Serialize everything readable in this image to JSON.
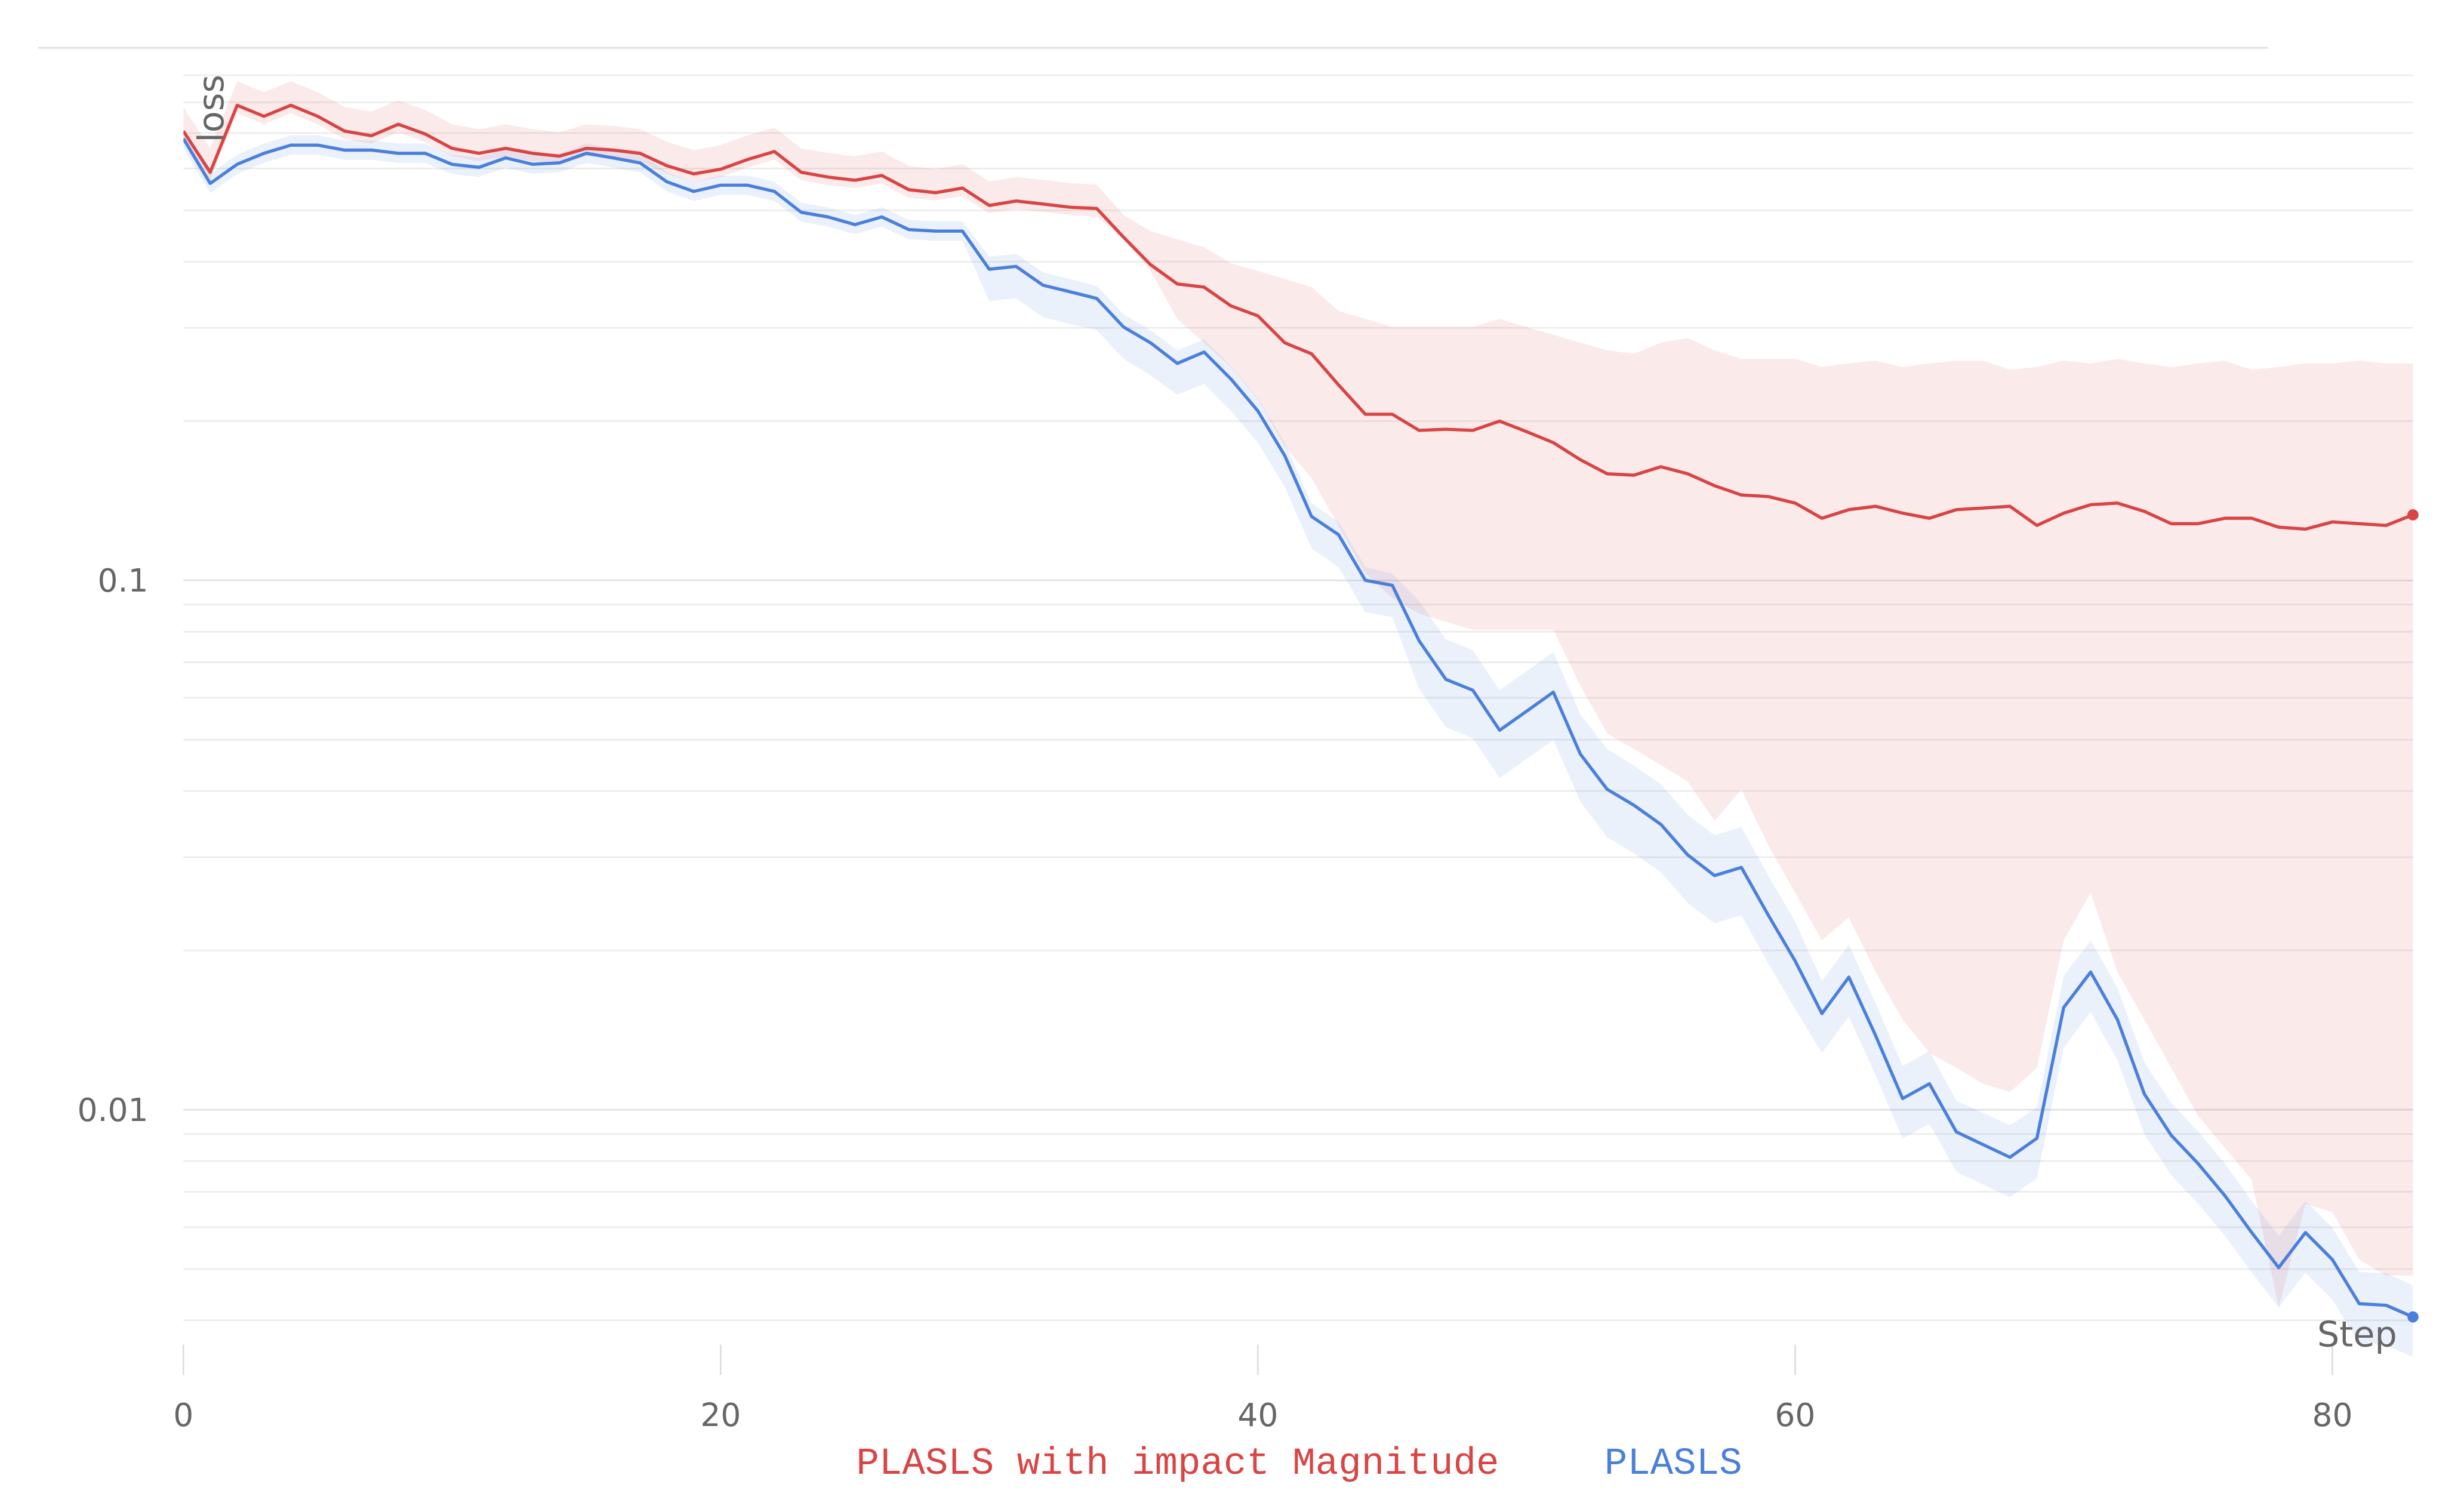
{
  "chart_data": {
    "type": "line",
    "y_label": "loss",
    "x_label": "Step",
    "log_y": true,
    "grid": true,
    "xlim": [
      0,
      83
    ],
    "xticks": [
      0,
      20,
      40,
      60,
      80
    ],
    "ylim": [
      0.0035,
      1
    ],
    "yticks": [
      0.1,
      0.01
    ],
    "minor_yticks": [
      0.004,
      0.005,
      0.006,
      0.007,
      0.008,
      0.009,
      0.02,
      0.03,
      0.04,
      0.05,
      0.06,
      0.07,
      0.08,
      0.09,
      0.2,
      0.3,
      0.4,
      0.5,
      0.6,
      0.7,
      0.8,
      0.9
    ],
    "x": [
      0,
      1,
      2,
      3,
      4,
      5,
      6,
      7,
      8,
      9,
      10,
      11,
      12,
      13,
      14,
      15,
      16,
      17,
      18,
      19,
      20,
      21,
      22,
      23,
      24,
      25,
      26,
      27,
      28,
      29,
      30,
      31,
      32,
      33,
      34,
      35,
      36,
      37,
      38,
      39,
      40,
      41,
      42,
      43,
      44,
      45,
      46,
      47,
      48,
      49,
      50,
      51,
      52,
      53,
      54,
      55,
      56,
      57,
      58,
      59,
      60,
      61,
      62,
      63,
      64,
      65,
      66,
      67,
      68,
      69,
      70,
      71,
      72,
      73,
      74,
      75,
      76,
      77,
      78,
      79,
      80,
      81,
      82,
      83
    ],
    "series": [
      {
        "name": "PLASLS with impact Magnitude",
        "color": "#d94444",
        "values": [
          0.706,
          0.59,
          0.79,
          0.753,
          0.79,
          0.753,
          0.706,
          0.692,
          0.727,
          0.697,
          0.655,
          0.641,
          0.655,
          0.641,
          0.633,
          0.655,
          0.65,
          0.641,
          0.607,
          0.586,
          0.598,
          0.624,
          0.646,
          0.59,
          0.578,
          0.57,
          0.582,
          0.547,
          0.54,
          0.551,
          0.511,
          0.521,
          0.514,
          0.507,
          0.504,
          0.445,
          0.395,
          0.363,
          0.358,
          0.33,
          0.316,
          0.281,
          0.268,
          0.234,
          0.206,
          0.206,
          0.192,
          0.193,
          0.192,
          0.2,
          0.191,
          0.182,
          0.169,
          0.159,
          0.158,
          0.164,
          0.159,
          0.151,
          0.145,
          0.144,
          0.14,
          0.131,
          0.136,
          0.138,
          0.134,
          0.131,
          0.136,
          0.137,
          0.138,
          0.127,
          0.134,
          0.139,
          0.14,
          0.135,
          0.128,
          0.128,
          0.131,
          0.131,
          0.126,
          0.125,
          0.129,
          0.128,
          0.127,
          0.133
        ],
        "upper": [
          0.784,
          0.655,
          0.877,
          0.836,
          0.877,
          0.836,
          0.784,
          0.768,
          0.807,
          0.774,
          0.727,
          0.712,
          0.727,
          0.712,
          0.703,
          0.727,
          0.722,
          0.712,
          0.674,
          0.65,
          0.664,
          0.693,
          0.717,
          0.655,
          0.642,
          0.633,
          0.646,
          0.607,
          0.599,
          0.612,
          0.567,
          0.578,
          0.571,
          0.563,
          0.559,
          0.49,
          0.457,
          0.441,
          0.426,
          0.397,
          0.384,
          0.371,
          0.358,
          0.323,
          0.312,
          0.301,
          0.301,
          0.301,
          0.301,
          0.312,
          0.301,
          0.291,
          0.281,
          0.272,
          0.268,
          0.281,
          0.287,
          0.272,
          0.262,
          0.262,
          0.262,
          0.253,
          0.257,
          0.26,
          0.253,
          0.257,
          0.26,
          0.26,
          0.25,
          0.253,
          0.26,
          0.257,
          0.262,
          0.257,
          0.253,
          0.257,
          0.26,
          0.25,
          0.253,
          0.257,
          0.257,
          0.26,
          0.257,
          0.257
        ],
        "lower": [
          0.682,
          0.57,
          0.763,
          0.727,
          0.763,
          0.727,
          0.682,
          0.668,
          0.702,
          0.673,
          0.633,
          0.619,
          0.633,
          0.619,
          0.611,
          0.633,
          0.628,
          0.619,
          0.586,
          0.566,
          0.578,
          0.603,
          0.624,
          0.57,
          0.558,
          0.551,
          0.562,
          0.528,
          0.522,
          0.532,
          0.494,
          0.503,
          0.497,
          0.49,
          0.487,
          0.441,
          0.384,
          0.312,
          0.281,
          0.253,
          0.22,
          0.179,
          0.156,
          0.127,
          0.103,
          0.0927,
          0.0865,
          0.0835,
          0.0807,
          0.0807,
          0.0807,
          0.0807,
          0.0633,
          0.0514,
          0.048,
          0.0448,
          0.0417,
          0.0351,
          0.0403,
          0.0316,
          0.0257,
          0.0209,
          0.0231,
          0.0182,
          0.0148,
          0.0128,
          0.012,
          0.0112,
          0.0108,
          0.012,
          0.0209,
          0.0257,
          0.0182,
          0.0148,
          0.012,
          0.00973,
          0.00847,
          0.00737,
          0.00423,
          0.00664,
          0.00641,
          0.00521,
          0.00486,
          0.00486
        ]
      },
      {
        "name": "PLASLS",
        "color": "#4a7fdc",
        "values": [
          0.683,
          0.562,
          0.611,
          0.641,
          0.664,
          0.664,
          0.65,
          0.65,
          0.641,
          0.641,
          0.611,
          0.603,
          0.628,
          0.611,
          0.615,
          0.641,
          0.628,
          0.615,
          0.566,
          0.543,
          0.558,
          0.558,
          0.543,
          0.496,
          0.486,
          0.47,
          0.486,
          0.46,
          0.457,
          0.457,
          0.387,
          0.392,
          0.361,
          0.351,
          0.341,
          0.301,
          0.281,
          0.257,
          0.27,
          0.24,
          0.209,
          0.172,
          0.132,
          0.122,
          0.1,
          0.0979,
          0.0769,
          0.065,
          0.062,
          0.0521,
          0.0566,
          0.0615,
          0.047,
          0.0403,
          0.0376,
          0.0346,
          0.0303,
          0.0277,
          0.0287,
          0.0233,
          0.0191,
          0.0152,
          0.0178,
          0.0138,
          0.0105,
          0.0112,
          0.00908,
          0.00859,
          0.00813,
          0.00883,
          0.0156,
          0.0182,
          0.0148,
          0.0107,
          0.00895,
          0.00791,
          0.00688,
          0.00586,
          0.00503,
          0.00586,
          0.00521,
          0.0043,
          0.00427,
          0.00406
        ],
        "upper": [
          0.712,
          0.586,
          0.637,
          0.669,
          0.693,
          0.693,
          0.678,
          0.678,
          0.669,
          0.669,
          0.637,
          0.629,
          0.655,
          0.637,
          0.641,
          0.669,
          0.655,
          0.641,
          0.59,
          0.566,
          0.582,
          0.582,
          0.566,
          0.517,
          0.507,
          0.49,
          0.507,
          0.48,
          0.477,
          0.477,
          0.409,
          0.414,
          0.382,
          0.371,
          0.36,
          0.318,
          0.297,
          0.272,
          0.285,
          0.254,
          0.221,
          0.182,
          0.14,
          0.129,
          0.106,
          0.103,
          0.0915,
          0.0774,
          0.0738,
          0.062,
          0.0674,
          0.0732,
          0.0559,
          0.048,
          0.0447,
          0.0412,
          0.0361,
          0.033,
          0.0342,
          0.0277,
          0.0227,
          0.0175,
          0.0205,
          0.0159,
          0.0121,
          0.0129,
          0.0104,
          0.00987,
          0.00934,
          0.0101,
          0.0179,
          0.0209,
          0.017,
          0.0123,
          0.0103,
          0.00909,
          0.00791,
          0.00673,
          0.00578,
          0.00673,
          0.00599,
          0.00494,
          0.00491,
          0.00466
        ],
        "lower": [
          0.655,
          0.539,
          0.586,
          0.615,
          0.637,
          0.637,
          0.623,
          0.623,
          0.615,
          0.615,
          0.586,
          0.578,
          0.602,
          0.586,
          0.59,
          0.615,
          0.602,
          0.59,
          0.543,
          0.521,
          0.535,
          0.535,
          0.521,
          0.476,
          0.466,
          0.451,
          0.466,
          0.441,
          0.438,
          0.438,
          0.337,
          0.341,
          0.314,
          0.305,
          0.297,
          0.262,
          0.244,
          0.224,
          0.235,
          0.209,
          0.182,
          0.15,
          0.115,
          0.106,
          0.087,
          0.0852,
          0.0624,
          0.0528,
          0.0503,
          0.0423,
          0.046,
          0.0499,
          0.0382,
          0.0327,
          0.0305,
          0.0281,
          0.0246,
          0.0225,
          0.0233,
          0.0189,
          0.0155,
          0.0128,
          0.015,
          0.0116,
          0.00882,
          0.00941,
          0.00763,
          0.00722,
          0.00683,
          0.00742,
          0.0131,
          0.0153,
          0.0124,
          0.00899,
          0.00752,
          0.00664,
          0.00578,
          0.00492,
          0.00423,
          0.00492,
          0.00438,
          0.00361,
          0.00359,
          0.00341
        ]
      }
    ]
  }
}
